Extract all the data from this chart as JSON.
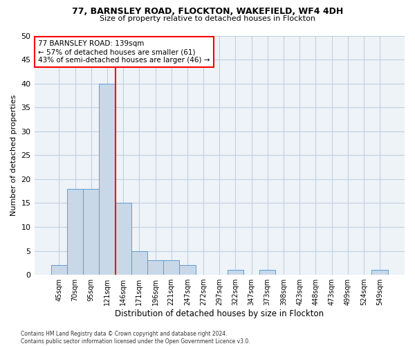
{
  "title1": "77, BARNSLEY ROAD, FLOCKTON, WAKEFIELD, WF4 4DH",
  "title2": "Size of property relative to detached houses in Flockton",
  "xlabel": "Distribution of detached houses by size in Flockton",
  "ylabel": "Number of detached properties",
  "categories": [
    "45sqm",
    "70sqm",
    "95sqm",
    "121sqm",
    "146sqm",
    "171sqm",
    "196sqm",
    "221sqm",
    "247sqm",
    "272sqm",
    "297sqm",
    "322sqm",
    "347sqm",
    "373sqm",
    "398sqm",
    "423sqm",
    "448sqm",
    "473sqm",
    "499sqm",
    "524sqm",
    "549sqm"
  ],
  "values": [
    2,
    18,
    18,
    40,
    15,
    5,
    3,
    3,
    2,
    0,
    0,
    1,
    0,
    1,
    0,
    0,
    0,
    0,
    0,
    0,
    1
  ],
  "bar_color": "#c8d8e8",
  "bar_edge_color": "#5b9bd5",
  "bar_width": 1.0,
  "property_line_x": 3.5,
  "annotation_text": "77 BARNSLEY ROAD: 139sqm\n← 57% of detached houses are smaller (61)\n43% of semi-detached houses are larger (46) →",
  "annotation_box_color": "white",
  "annotation_box_edge_color": "red",
  "red_line_color": "red",
  "grid_color": "#c0cfe0",
  "background_color": "#eef3f8",
  "yticks": [
    0,
    5,
    10,
    15,
    20,
    25,
    30,
    35,
    40,
    45,
    50
  ],
  "ylim": [
    0,
    50
  ],
  "footer": "Contains HM Land Registry data © Crown copyright and database right 2024.\nContains public sector information licensed under the Open Government Licence v3.0."
}
